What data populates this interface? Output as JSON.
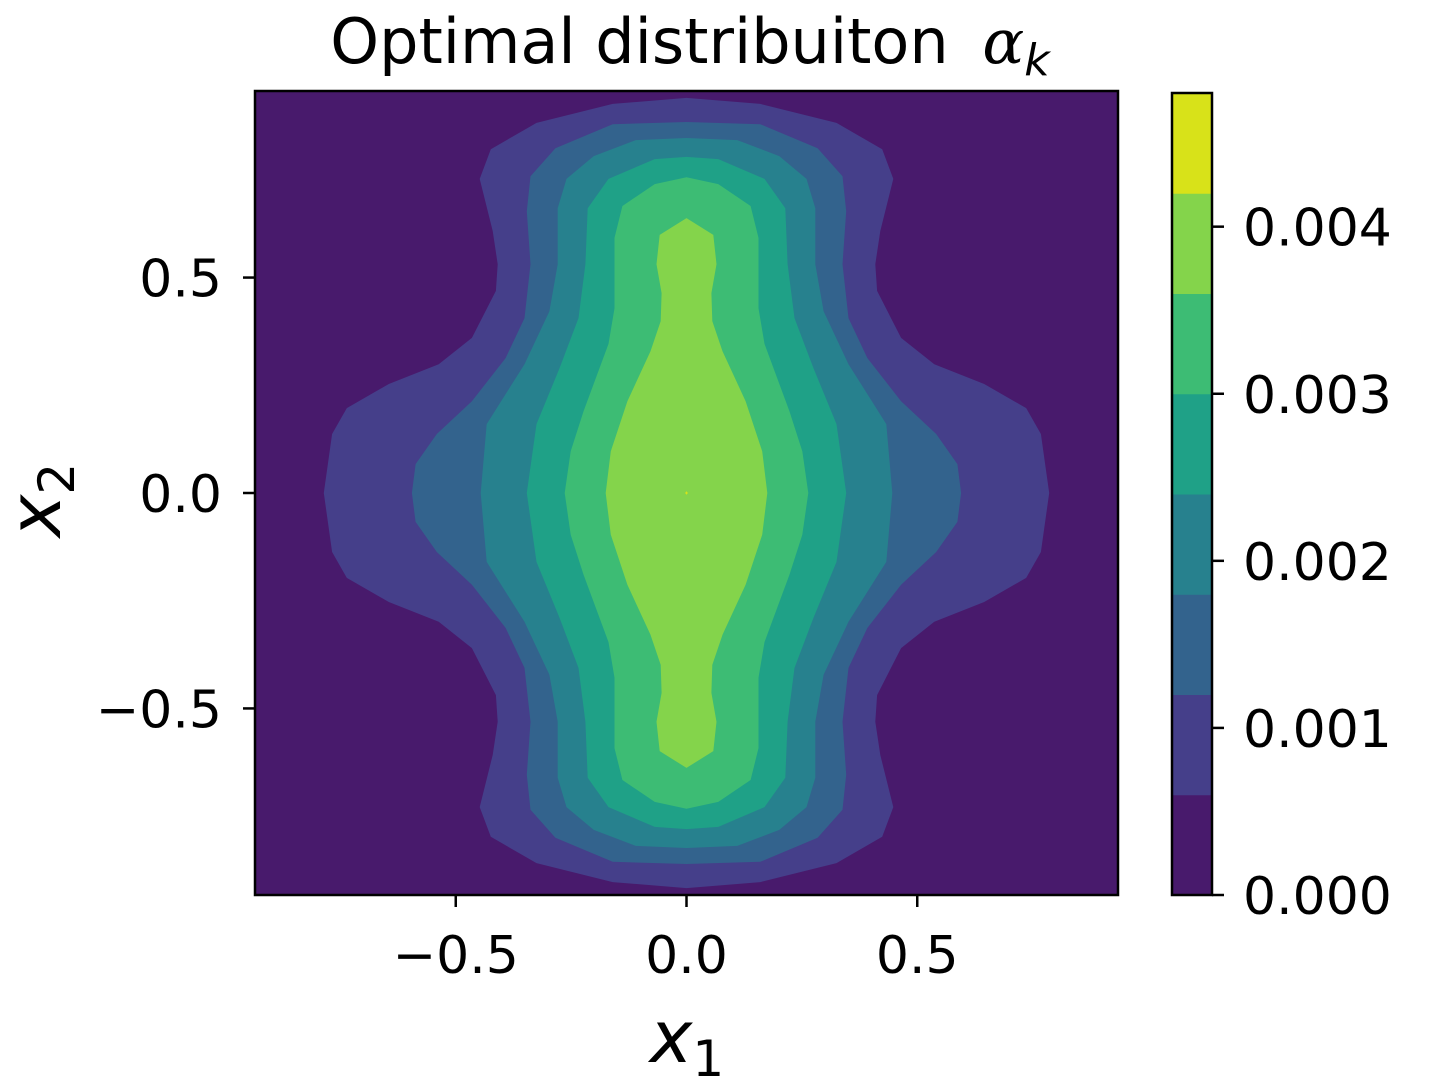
{
  "chart_data": {
    "type": "contourf",
    "title": "Optimal distribuiton",
    "title_symbol": "α",
    "title_subscript": "k",
    "xlabel": "x",
    "xlabel_subscript": "1",
    "ylabel": "x",
    "ylabel_subscript": "2",
    "xlim": [
      -0.935,
      0.935
    ],
    "ylim": [
      -0.933,
      0.933
    ],
    "xticks": [
      -0.5,
      0.0,
      0.5
    ],
    "xtick_labels": [
      "−0.5",
      "0.0",
      "0.5"
    ],
    "yticks": [
      0.5,
      0.0,
      -0.5
    ],
    "ytick_labels": [
      "0.5",
      "0.0",
      "−0.5"
    ],
    "symmetry": "mirror in x and y",
    "levels": [
      0.0,
      0.0006,
      0.0012,
      0.0018,
      0.0024,
      0.003,
      0.0036,
      0.0042,
      0.0048
    ],
    "level_colors": [
      "#481a6c",
      "#453f8a",
      "#33638d",
      "#27818e",
      "#1fa187",
      "#3dbc74",
      "#84d44b",
      "#d8e219"
    ],
    "colorbar": {
      "ticks": [
        0.0,
        0.001,
        0.002,
        0.003,
        0.004
      ],
      "tick_labels": [
        "0.000",
        "0.001",
        "0.002",
        "0.003",
        "0.004"
      ],
      "range": [
        0.0,
        0.0048
      ]
    },
    "contours_quadrant": [
      {
        "level": 0.0006,
        "points": [
          [
            0,
            0.917
          ],
          [
            0.16,
            0.903
          ],
          [
            0.325,
            0.859
          ],
          [
            0.424,
            0.798
          ],
          [
            0.448,
            0.729
          ],
          [
            0.42,
            0.608
          ],
          [
            0.409,
            0.531
          ],
          [
            0.413,
            0.469
          ],
          [
            0.465,
            0.36
          ],
          [
            0.537,
            0.299
          ],
          [
            0.645,
            0.253
          ],
          [
            0.736,
            0.197
          ],
          [
            0.768,
            0.137
          ],
          [
            0.786,
            0
          ]
        ]
      },
      {
        "level": 0.0012,
        "points": [
          [
            0,
            0.861
          ],
          [
            0.16,
            0.856
          ],
          [
            0.284,
            0.8
          ],
          [
            0.338,
            0.735
          ],
          [
            0.346,
            0.654
          ],
          [
            0.338,
            0.531
          ],
          [
            0.351,
            0.406
          ],
          [
            0.392,
            0.313
          ],
          [
            0.465,
            0.213
          ],
          [
            0.541,
            0.137
          ],
          [
            0.587,
            0.067
          ],
          [
            0.595,
            0
          ]
        ]
      },
      {
        "level": 0.0018,
        "points": [
          [
            0,
            0.824
          ],
          [
            0.11,
            0.819
          ],
          [
            0.201,
            0.782
          ],
          [
            0.26,
            0.729
          ],
          [
            0.279,
            0.661
          ],
          [
            0.279,
            0.531
          ],
          [
            0.297,
            0.422
          ],
          [
            0.351,
            0.299
          ],
          [
            0.433,
            0.16
          ],
          [
            0.446,
            0
          ]
        ]
      },
      {
        "level": 0.0024,
        "points": [
          [
            0,
            0.78
          ],
          [
            0.069,
            0.775
          ],
          [
            0.169,
            0.729
          ],
          [
            0.214,
            0.661
          ],
          [
            0.219,
            0.531
          ],
          [
            0.234,
            0.406
          ],
          [
            0.275,
            0.29
          ],
          [
            0.325,
            0.16
          ],
          [
            0.346,
            0
          ]
        ]
      },
      {
        "level": 0.003,
        "points": [
          [
            0,
            0.733
          ],
          [
            0.069,
            0.717
          ],
          [
            0.139,
            0.666
          ],
          [
            0.156,
            0.592
          ],
          [
            0.156,
            0.429
          ],
          [
            0.169,
            0.346
          ],
          [
            0.223,
            0.19
          ],
          [
            0.251,
            0.097
          ],
          [
            0.264,
            0
          ]
        ]
      },
      {
        "level": 0.0036,
        "points": [
          [
            0,
            0.638
          ],
          [
            0.058,
            0.599
          ],
          [
            0.065,
            0.531
          ],
          [
            0.054,
            0.464
          ],
          [
            0.056,
            0.399
          ],
          [
            0.078,
            0.329
          ],
          [
            0.128,
            0.213
          ],
          [
            0.164,
            0.097
          ],
          [
            0.175,
            0
          ]
        ]
      },
      {
        "level": 0.0042,
        "points": [
          [
            0,
            0.004
          ],
          [
            0.003,
            0
          ],
          [
            0,
            0
          ]
        ]
      }
    ]
  }
}
